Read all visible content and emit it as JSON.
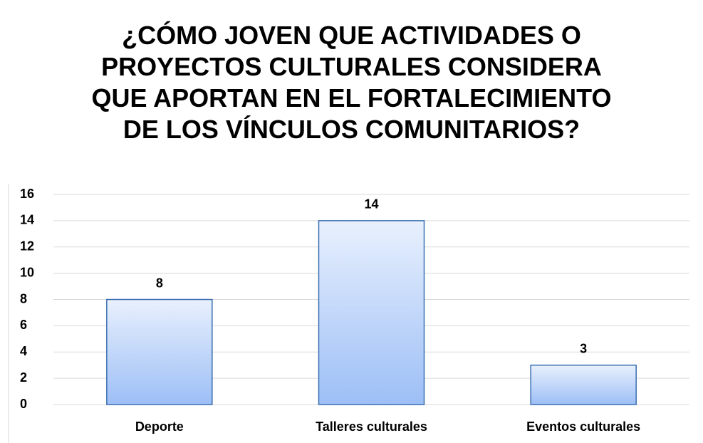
{
  "chart_data": {
    "type": "bar",
    "title": "¿CÓMO JOVEN QUE ACTIVIDADES O PROYECTOS CULTURALES CONSIDERA QUE APORTAN EN EL FORTALECIMIENTO DE LOS VÍNCULOS COMUNITARIOS?",
    "categories": [
      "Deporte",
      "Talleres culturales",
      "Eventos culturales"
    ],
    "values": [
      8,
      14,
      3
    ],
    "color": "#a6c6f6",
    "ylim": [
      0,
      16
    ],
    "yticks": [
      0,
      2,
      4,
      6,
      8,
      10,
      12,
      14,
      16
    ],
    "grid": true
  }
}
